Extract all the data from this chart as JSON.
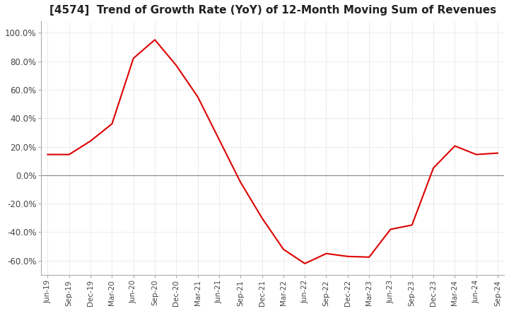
{
  "title": "[4574]  Trend of Growth Rate (YoY) of 12-Month Moving Sum of Revenues",
  "title_fontsize": 11,
  "line_color": "#dd0000",
  "background_color": "#ffffff",
  "grid_color": "#bbbbbb",
  "zero_line_color": "#888888",
  "ylim": [
    -70,
    108
  ],
  "yticks": [
    -60,
    -40,
    -20,
    0,
    20,
    40,
    60,
    80,
    100
  ],
  "ytick_labels": [
    "-60.0%",
    "-40.0%",
    "-20.0%",
    "0.0%",
    "20.0%",
    "40.0%",
    "60.0%",
    "80.0%",
    "100.0%"
  ],
  "dates": [
    "Jun-19",
    "Sep-19",
    "Dec-19",
    "Mar-20",
    "Jun-20",
    "Sep-20",
    "Dec-20",
    "Mar-21",
    "Jun-21",
    "Sep-21",
    "Dec-21",
    "Mar-22",
    "Jun-22",
    "Sep-22",
    "Dec-22",
    "Mar-23",
    "Jun-23",
    "Sep-23",
    "Dec-23",
    "Mar-24",
    "Jun-24",
    "Sep-24"
  ],
  "values": [
    14.5,
    14.5,
    24.0,
    36.0,
    82.0,
    95.0,
    77.0,
    55.0,
    25.0,
    -5.0,
    -30.0,
    -52.0,
    -62.0,
    -55.0,
    -57.0,
    -57.5,
    -38.0,
    -35.0,
    5.0,
    20.5,
    14.5,
    15.5
  ]
}
